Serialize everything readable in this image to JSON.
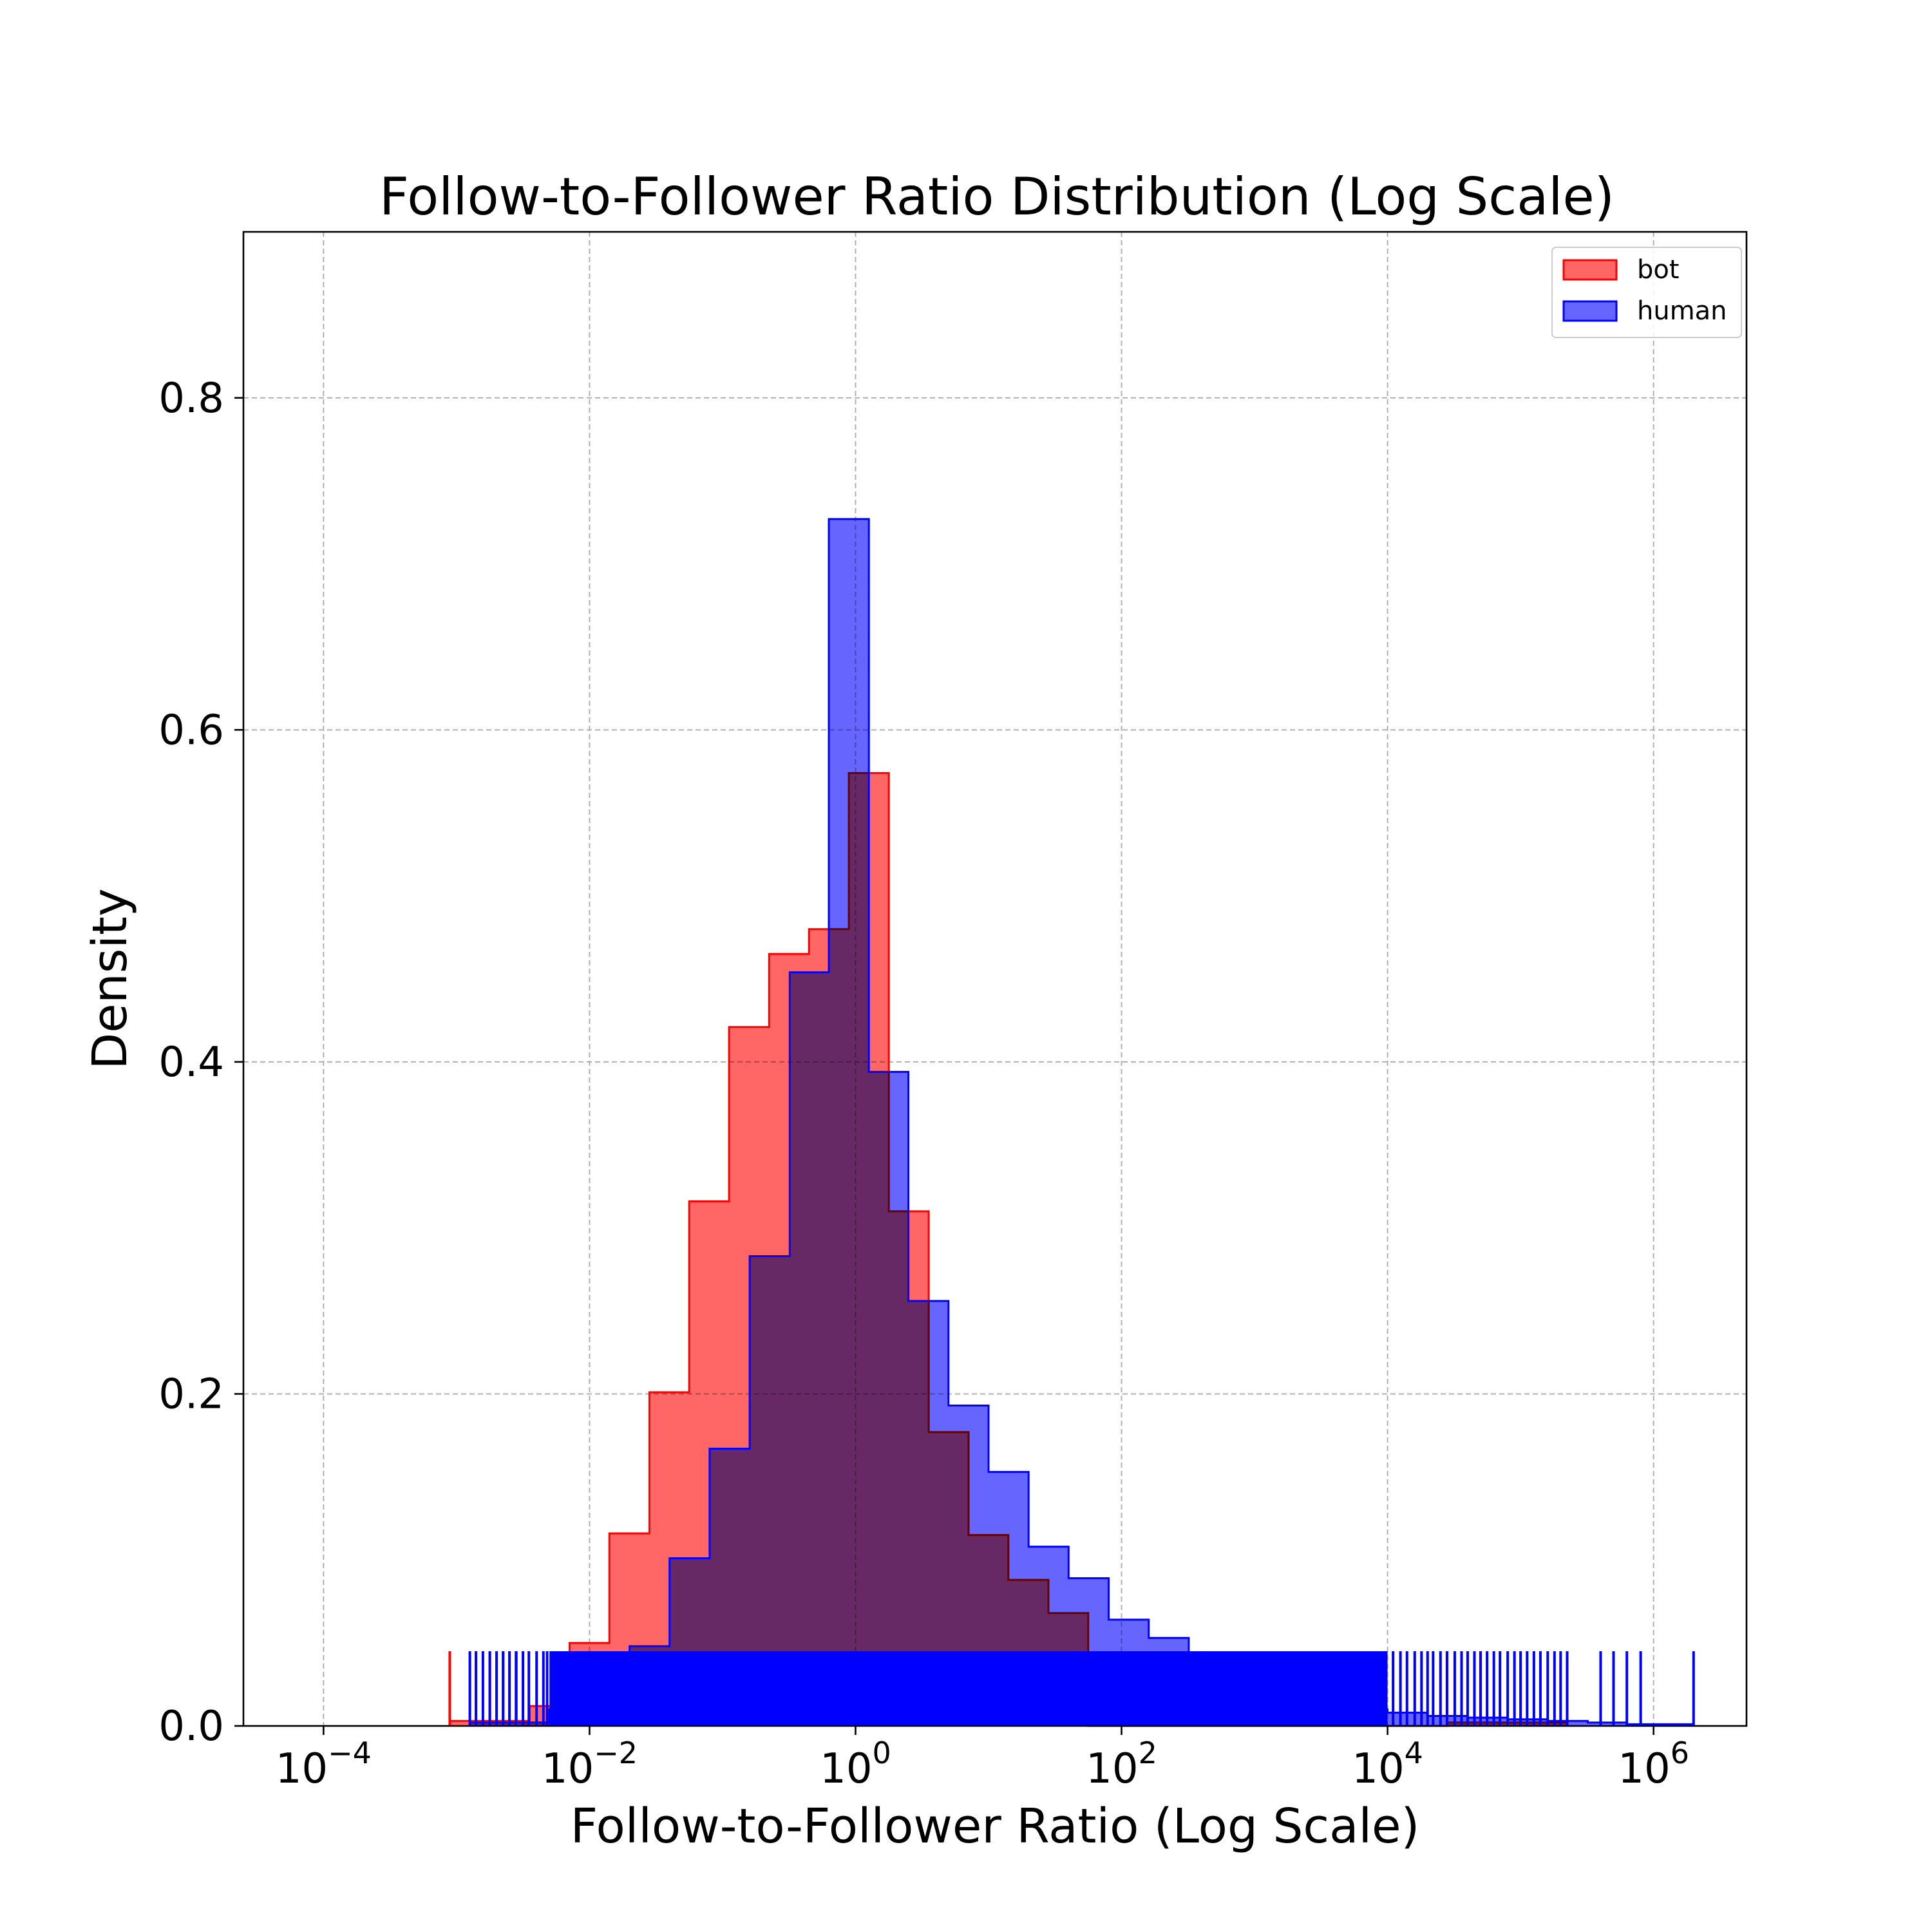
{
  "chart_data": {
    "type": "histogram",
    "title": "Follow-to-Follower Ratio Distribution (Log Scale)",
    "xlabel": "Follow-to-Follower Ratio (Log Scale)",
    "ylabel": "Density",
    "x_scale": "log",
    "xlim": [
      2.5e-05,
      5000000
    ],
    "ylim": [
      0,
      0.9
    ],
    "grid": true,
    "legend_position": "top-right",
    "x_ticks": [
      {
        "value": 0.0001,
        "base": "10",
        "exp": "−4"
      },
      {
        "value": 0.01,
        "base": "10",
        "exp": "−2"
      },
      {
        "value": 1,
        "base": "10",
        "exp": "0"
      },
      {
        "value": 100,
        "base": "10",
        "exp": "2"
      },
      {
        "value": 10000,
        "base": "10",
        "exp": "4"
      },
      {
        "value": 1000000,
        "base": "10",
        "exp": "6"
      }
    ],
    "y_ticks": [
      {
        "value": 0.0,
        "label": "0.0"
      },
      {
        "value": 0.2,
        "label": "0.2"
      },
      {
        "value": 0.4,
        "label": "0.4"
      },
      {
        "value": 0.6,
        "label": "0.6"
      },
      {
        "value": 0.8,
        "label": "0.8"
      }
    ],
    "rug_height": 0.045,
    "series": [
      {
        "name": "bot",
        "color": "#ff0000",
        "fill": "#ff6666",
        "bin_edges": [
          0.00089,
          0.00178,
          0.00355,
          0.00708,
          0.0141,
          0.0282,
          0.0562,
          0.112,
          0.224,
          0.447,
          0.891,
          1.78,
          3.55,
          7.08,
          14.1,
          28.2,
          56.2,
          112,
          224,
          447,
          891,
          1780,
          3550,
          7080,
          14100,
          28200,
          56200,
          112000,
          224000
        ],
        "density": [
          0.003,
          0.003,
          0.012,
          0.05,
          0.116,
          0.201,
          0.316,
          0.421,
          0.465,
          0.48,
          0.574,
          0.31,
          0.177,
          0.115,
          0.088,
          0.068,
          0,
          0,
          0,
          0,
          0,
          0,
          0,
          0,
          0,
          0.002,
          0.002,
          0.002
        ],
        "rug": [
          0.00089,
          0.00178,
          0.00224,
          0.00282,
          0.00316,
          0.0056,
          0.025,
          0.63,
          28000,
          50000,
          224000
        ]
      },
      {
        "name": "human",
        "color": "#0000ff",
        "fill": "#6666ff",
        "bin_edges": [
          0.00126,
          0.0025,
          0.005,
          0.01,
          0.02,
          0.04,
          0.08,
          0.16,
          0.32,
          0.63,
          1.26,
          2.5,
          5,
          10,
          20,
          40,
          80,
          160,
          320,
          630,
          1260,
          2500,
          5000,
          10000,
          20000,
          40000,
          80000,
          160000,
          320000,
          630000,
          1260000,
          2000000
        ],
        "density": [
          0.002,
          0.002,
          0.01,
          0.02,
          0.048,
          0.101,
          0.167,
          0.283,
          0.454,
          0.727,
          0.394,
          0.256,
          0.193,
          0.153,
          0.108,
          0.089,
          0.064,
          0.053,
          0.032,
          0.021,
          0.015,
          0.012,
          0.01,
          0.008,
          0.006,
          0.005,
          0.004,
          0.003,
          0.002,
          0.001,
          0.001
        ],
        "rug_band": [
          0.005,
          10000
        ],
        "rug": [
          0.00126,
          0.0014,
          0.00158,
          0.00178,
          0.002,
          0.00224,
          0.0025,
          0.0028,
          0.00316,
          0.0035,
          0.004,
          0.0045,
          0.0048,
          11000,
          12500,
          14000,
          16000,
          18000,
          20000,
          22000,
          25000,
          28000,
          32000,
          36000,
          40000,
          45000,
          50000,
          56000,
          63000,
          70000,
          80000,
          90000,
          100000,
          112000,
          126000,
          141000,
          160000,
          180000,
          200000,
          224000,
          400000,
          500000,
          630000,
          800000,
          2000000
        ]
      }
    ]
  }
}
